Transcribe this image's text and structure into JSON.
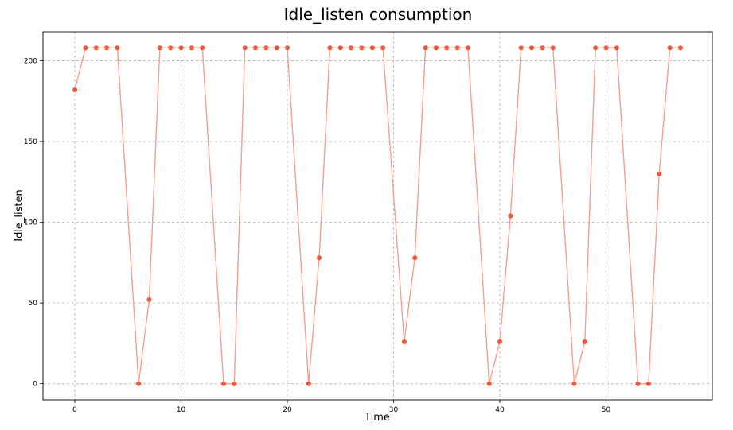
{
  "chart_data": {
    "type": "line",
    "title": "Idle_listen consumption",
    "xlabel": "Time",
    "ylabel": "Idle_listen",
    "xlim": [
      -3,
      60
    ],
    "ylim": [
      -10,
      218
    ],
    "xticks": [
      0,
      10,
      20,
      30,
      40,
      50
    ],
    "yticks": [
      0,
      50,
      100,
      150,
      200
    ],
    "grid": true,
    "colors": {
      "line": "#f4a090",
      "marker": "#f05a3c"
    },
    "series": [
      {
        "x": [
          0,
          1,
          2,
          3,
          4,
          6,
          7,
          8,
          9,
          10,
          11,
          12,
          14,
          15,
          16,
          17,
          18,
          19,
          20,
          22,
          23,
          24,
          25,
          26,
          27,
          28,
          29,
          31,
          32,
          33,
          34,
          35,
          36,
          37,
          39,
          40,
          41,
          42,
          43,
          44,
          45,
          47,
          48,
          49,
          50,
          51,
          53,
          54,
          55,
          56,
          57
        ],
        "values": [
          182,
          208,
          208,
          208,
          208,
          0,
          52,
          208,
          208,
          208,
          208,
          208,
          0,
          0,
          208,
          208,
          208,
          208,
          208,
          0,
          78,
          208,
          208,
          208,
          208,
          208,
          208,
          26,
          78,
          208,
          208,
          208,
          208,
          208,
          0,
          26,
          104,
          208,
          208,
          208,
          208,
          0,
          26,
          208,
          208,
          208,
          0,
          0,
          130,
          208,
          208
        ]
      }
    ]
  }
}
